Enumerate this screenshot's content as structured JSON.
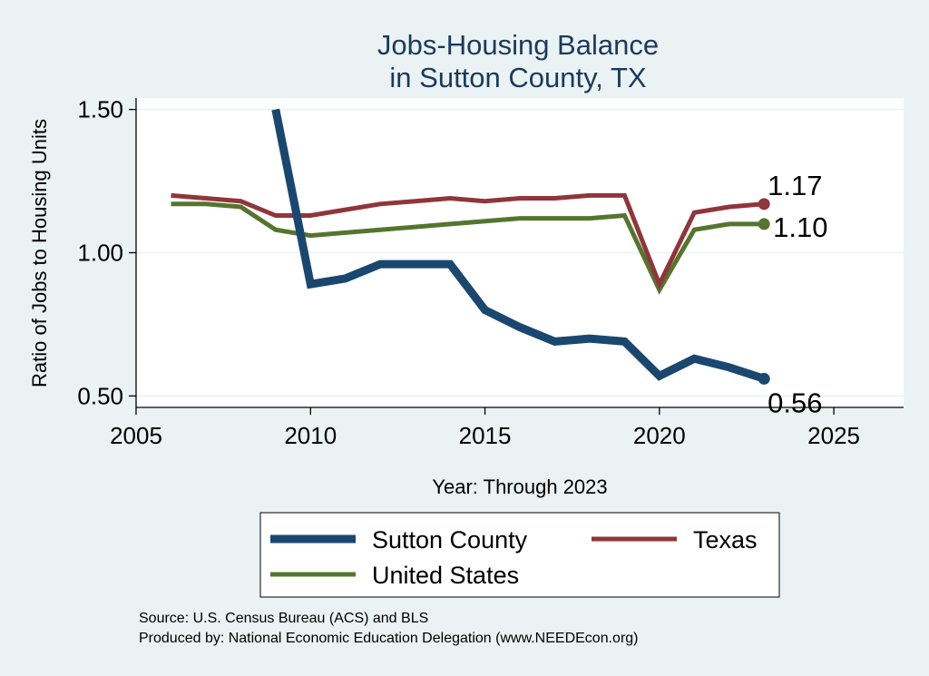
{
  "chart_data": {
    "type": "line",
    "title": [
      "Jobs-Housing Balance",
      "in Sutton County, TX"
    ],
    "xlabel": "Year: Through 2023",
    "ylabel": "Ratio of Jobs to Housing Units",
    "xlim": [
      2005,
      2027
    ],
    "ylim": [
      0.46,
      1.54
    ],
    "xticks": [
      "2005",
      "2010",
      "2015",
      "2020",
      "2025"
    ],
    "yticks": [
      "0.50",
      "1.00",
      "1.50"
    ],
    "grid": true,
    "legend_position": "bottom",
    "series": [
      {
        "name": "Sutton County",
        "color": "#1a476f",
        "x": [
          2009,
          2010,
          2011,
          2012,
          2013,
          2014,
          2015,
          2016,
          2017,
          2018,
          2019,
          2020,
          2021,
          2022,
          2023
        ],
        "y": [
          1.5,
          0.89,
          0.91,
          0.96,
          0.96,
          0.96,
          0.8,
          0.74,
          0.69,
          0.7,
          0.69,
          0.57,
          0.63,
          0.6,
          0.56
        ],
        "end_label": "0.56"
      },
      {
        "name": "Texas",
        "color": "#90353b",
        "x": [
          2006,
          2007,
          2008,
          2009,
          2010,
          2011,
          2012,
          2013,
          2014,
          2015,
          2016,
          2017,
          2018,
          2019,
          2020,
          2021,
          2022,
          2023
        ],
        "y": [
          1.2,
          1.19,
          1.18,
          1.13,
          1.13,
          1.15,
          1.17,
          1.18,
          1.19,
          1.18,
          1.19,
          1.19,
          1.2,
          1.2,
          0.89,
          1.14,
          1.16,
          1.17
        ],
        "end_label": "1.17"
      },
      {
        "name": "United States",
        "color": "#55752f",
        "x": [
          2006,
          2007,
          2008,
          2009,
          2010,
          2011,
          2012,
          2013,
          2014,
          2015,
          2016,
          2017,
          2018,
          2019,
          2020,
          2021,
          2022,
          2023
        ],
        "y": [
          1.17,
          1.17,
          1.16,
          1.08,
          1.06,
          1.07,
          1.08,
          1.09,
          1.1,
          1.11,
          1.12,
          1.12,
          1.12,
          1.13,
          0.87,
          1.08,
          1.1,
          1.1
        ],
        "end_label": "1.10"
      }
    ],
    "source_lines": [
      "Source: U.S. Census Bureau (ACS) and BLS",
      "Produced by: National Economic Education Delegation (www.NEEDEcon.org)"
    ]
  }
}
